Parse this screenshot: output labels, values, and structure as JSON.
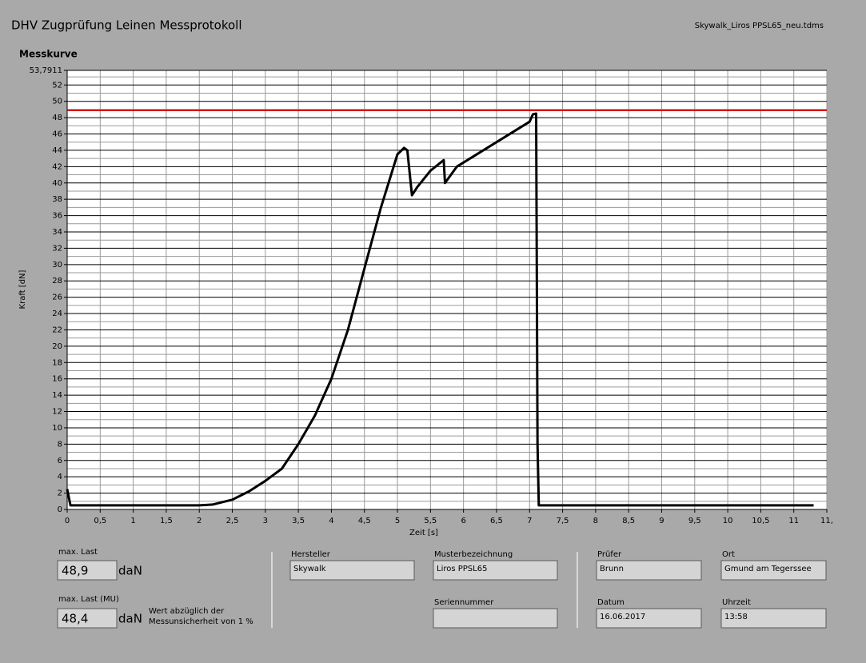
{
  "header": {
    "title": "DHV Zugprüfung Leinen Messprotokoll",
    "file": "Skywalk_Liros PPSL65_neu.tdms"
  },
  "chart_data": {
    "type": "line",
    "title": "Messkurve",
    "y_label": "Kraft [dN]",
    "x_label": "Zeit [s]",
    "color": "#000000",
    "x": [
      0,
      0.05,
      0.5,
      1,
      1.5,
      2,
      2.2,
      2.5,
      2.75,
      3,
      3.25,
      3.5,
      3.75,
      4,
      4.25,
      4.5,
      4.75,
      5,
      5.1,
      5.15,
      5.2,
      5.22,
      5.3,
      5.5,
      5.7,
      5.72,
      5.9,
      6,
      6.5,
      7,
      7.05,
      7.1,
      7.12,
      7.14,
      8,
      9,
      10,
      11,
      11.3
    ],
    "values": [
      2.5,
      0.5,
      0.5,
      0.5,
      0.5,
      0.5,
      0.6,
      1.2,
      2.2,
      3.5,
      5,
      8,
      11.5,
      16,
      22,
      29.5,
      37,
      43.5,
      44.3,
      44,
      40,
      38.5,
      39.5,
      41.5,
      42.8,
      40,
      42,
      42.5,
      45,
      47.5,
      48.4,
      48.5,
      8,
      0.5,
      0.5,
      0.5,
      0.5,
      0.5,
      0.5
    ],
    "reference_line": {
      "value": 48.9,
      "color": "#d00000"
    },
    "xlim": [
      0,
      11.5
    ],
    "ylim": [
      0,
      53.7911
    ],
    "xticks": [
      0,
      {
        "value": 0.5,
        "label": "0,5"
      },
      1,
      {
        "value": 1.5,
        "label": "1,5"
      },
      2,
      {
        "value": 2.5,
        "label": "2,5"
      },
      3,
      {
        "value": 3.5,
        "label": "3,5"
      },
      4,
      {
        "value": 4.5,
        "label": "4,5"
      },
      5,
      {
        "value": 5.5,
        "label": "5,5"
      },
      6,
      {
        "value": 6.5,
        "label": "6,5"
      },
      7,
      {
        "value": 7.5,
        "label": "7,5"
      },
      8,
      {
        "value": 8.5,
        "label": "8,5"
      },
      9,
      {
        "value": 9.5,
        "label": "9,5"
      },
      10,
      {
        "value": 10.5,
        "label": "10,5"
      },
      11,
      {
        "value": 11.5,
        "label": "11,"
      }
    ],
    "yticks": [
      0,
      2,
      4,
      6,
      8,
      10,
      12,
      14,
      16,
      18,
      20,
      22,
      24,
      26,
      28,
      30,
      32,
      34,
      36,
      38,
      40,
      42,
      44,
      46,
      48,
      50,
      52,
      {
        "value": 53.7911,
        "label": "53,7911"
      }
    ],
    "y_minor_ticks": [
      1,
      3,
      5,
      7,
      9,
      11,
      13,
      15,
      17,
      19,
      21,
      23,
      25,
      27,
      29,
      31,
      33,
      35,
      37,
      39,
      41,
      43,
      45,
      47,
      49,
      51,
      53
    ],
    "grid": true
  },
  "results": {
    "max_label": "max. Last",
    "max_value": "48,9",
    "max_unit": "daN",
    "mu_label": "max. Last (MU)",
    "mu_value": "48,4",
    "mu_unit": "daN",
    "note_line1": "Wert abzüglich der",
    "note_line2": "Messunsicherheit von 1 %"
  },
  "fields": [
    {
      "label": "Hersteller",
      "value": "Skywalk"
    },
    {
      "label": "Musterbezeichnung",
      "value": "Liros PPSL65"
    },
    {
      "label": "Seriennummer"
    },
    {
      "label": "Prüfer",
      "value": "Brunn"
    },
    {
      "label": "Ort",
      "value": "Gmund am Tegerssee"
    },
    {
      "label": "Datum",
      "value": "16.06.2017"
    },
    {
      "label": "Uhrzeit",
      "value": "13:58"
    }
  ]
}
